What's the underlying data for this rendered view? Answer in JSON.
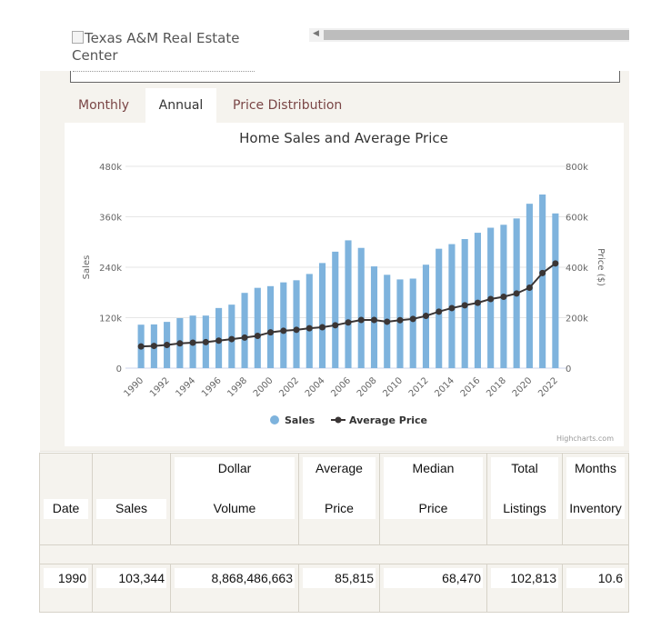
{
  "logo": {
    "alt_text": "Texas A&M Real Estate Center"
  },
  "tabs": [
    {
      "label": "Monthly",
      "active": false
    },
    {
      "label": "Annual",
      "active": true
    },
    {
      "label": "Price Distribution",
      "active": false
    }
  ],
  "credit": "Highcharts.com",
  "colors": {
    "sales": "#7eb3dd",
    "price": "#3a3535",
    "tab_text": "#7a4646"
  },
  "chart_data": {
    "type": "bar",
    "title": "Home Sales and Average Price",
    "x": [
      "1990",
      "1991",
      "1992",
      "1993",
      "1994",
      "1995",
      "1996",
      "1997",
      "1998",
      "1999",
      "2000",
      "2001",
      "2002",
      "2003",
      "2004",
      "2005",
      "2006",
      "2007",
      "2008",
      "2009",
      "2010",
      "2011",
      "2012",
      "2013",
      "2014",
      "2015",
      "2016",
      "2017",
      "2018",
      "2019",
      "2020",
      "2021",
      "2022"
    ],
    "x_tick_labels": [
      "1990",
      "1992",
      "1994",
      "1996",
      "1998",
      "2000",
      "2002",
      "2004",
      "2006",
      "2008",
      "2010",
      "2012",
      "2014",
      "2016",
      "2018",
      "2020",
      "2022"
    ],
    "left_axis": {
      "label": "Sales",
      "ticks": [
        "0",
        "120k",
        "240k",
        "360k",
        "480k"
      ],
      "range": [
        0,
        480000
      ]
    },
    "right_axis": {
      "label": "Price ($)",
      "ticks": [
        "0",
        "200k",
        "400k",
        "600k",
        "800k"
      ],
      "range": [
        0,
        800000
      ]
    },
    "grid": true,
    "legend_position": "bottom-center",
    "series": [
      {
        "name": "Sales",
        "type": "bar",
        "axis": "left",
        "values": [
          103344,
          104000,
          110000,
          119000,
          125000,
          125000,
          143000,
          151000,
          179000,
          191000,
          195000,
          204000,
          209000,
          224000,
          250000,
          277000,
          304000,
          286000,
          242000,
          222000,
          211000,
          213000,
          246000,
          284000,
          295000,
          307000,
          322000,
          334000,
          341000,
          356000,
          391000,
          413000,
          368000
        ]
      },
      {
        "name": "Average Price",
        "type": "line",
        "axis": "right",
        "values": [
          85815,
          88000,
          92000,
          98000,
          101000,
          103000,
          109000,
          115000,
          121000,
          128000,
          142000,
          148000,
          152000,
          158000,
          162000,
          170000,
          181000,
          191000,
          191000,
          184000,
          190000,
          195000,
          207000,
          224000,
          238000,
          249000,
          259000,
          274000,
          283000,
          296000,
          319000,
          377000,
          415000
        ]
      }
    ]
  },
  "table": {
    "headers": [
      {
        "l1": "",
        "l2": "Date"
      },
      {
        "l1": "",
        "l2": "Sales"
      },
      {
        "l1": "Dollar",
        "l2": "Volume"
      },
      {
        "l1": "Average",
        "l2": "Price"
      },
      {
        "l1": "Median",
        "l2": "Price"
      },
      {
        "l1": "Total",
        "l2": "Listings"
      },
      {
        "l1": "Months",
        "l2": "Inventory"
      }
    ],
    "row": [
      "1990",
      "103,344",
      "8,868,486,663",
      "85,815",
      "68,470",
      "102,813",
      "10.6"
    ]
  }
}
